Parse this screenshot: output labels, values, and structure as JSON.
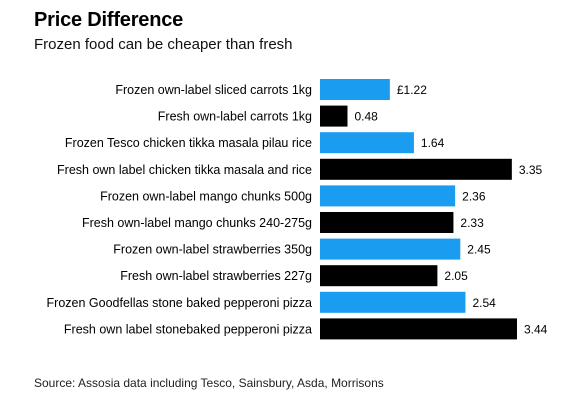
{
  "title": "Price Difference",
  "subtitle": "Frozen food can be cheaper than fresh",
  "source": "Source: Assosia data including Tesco, Sainsbury, Asda, Morrisons",
  "colors": {
    "frozen": "#1a9cf0",
    "fresh": "#000000"
  },
  "chart_data": {
    "type": "bar",
    "orientation": "horizontal",
    "title": "Price Difference",
    "subtitle": "Frozen food can be cheaper than fresh",
    "categories": [
      "Frozen own-label sliced carrots 1kg",
      "Fresh own-label carrots 1kg",
      "Frozen Tesco chicken tikka masala pilau rice",
      "Fresh own label chicken tikka masala and rice",
      "Frozen own-label mango chunks 500g",
      "Fresh own-label mango chunks 240-275g",
      "Frozen own-label strawberries 350g",
      "Fresh own-label strawberries 227g",
      "Frozen Goodfellas stone baked pepperoni pizza",
      "Fresh own label stonebaked pepperoni pizza"
    ],
    "values": [
      1.22,
      0.48,
      1.64,
      3.35,
      2.36,
      2.33,
      2.45,
      2.05,
      2.54,
      3.44
    ],
    "value_labels": [
      "£1.22",
      "0.48",
      "1.64",
      "3.35",
      "2.36",
      "2.33",
      "2.45",
      "2.05",
      "2.54",
      "3.44"
    ],
    "kind": [
      "frozen",
      "fresh",
      "frozen",
      "fresh",
      "frozen",
      "fresh",
      "frozen",
      "fresh",
      "frozen",
      "fresh"
    ],
    "xlim": [
      0,
      3.44
    ],
    "grid": false,
    "legend": "none"
  }
}
